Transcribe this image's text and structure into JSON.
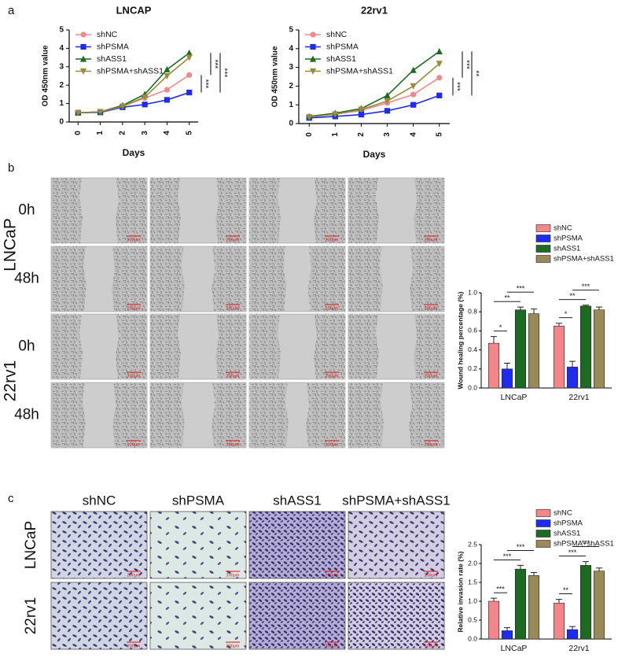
{
  "figure": {
    "panels": [
      "a",
      "b",
      "c"
    ],
    "wound_rows": [
      "0h",
      "48h",
      "0h",
      "48h"
    ],
    "wound_groups": [
      "LNCaP",
      "22rv1"
    ],
    "invasion_columns": [
      "shNC",
      "shPSMA",
      "shASS1",
      "shPSMA+shASS1"
    ],
    "invasion_rows": [
      "LNCaP",
      "22rv1"
    ],
    "scale_bar": "200μm"
  },
  "chart_data": [
    {
      "type": "line",
      "title": "LNCAP",
      "x_label": "Days",
      "y_label": "OD 450nm value",
      "x": [
        0,
        1,
        2,
        3,
        4,
        5
      ],
      "xlim": [
        -0.4,
        5.4
      ],
      "xticks": [
        0,
        1,
        2,
        3,
        4,
        5
      ],
      "ylim": [
        0,
        5
      ],
      "yticks": [
        0,
        1,
        2,
        3,
        4,
        5
      ],
      "series": [
        {
          "name": "shNC",
          "color": "#f08a8a",
          "marker": "circle",
          "values": [
            0.5,
            0.55,
            0.85,
            1.3,
            1.75,
            2.55
          ]
        },
        {
          "name": "shPSMA",
          "color": "#1f2cf0",
          "marker": "square",
          "values": [
            0.5,
            0.52,
            0.8,
            0.95,
            1.2,
            1.6
          ]
        },
        {
          "name": "shASS1",
          "color": "#1d6a22",
          "marker": "triangle",
          "values": [
            0.5,
            0.55,
            0.9,
            1.5,
            2.85,
            3.75
          ]
        },
        {
          "name": "shPSMA+shASS1",
          "color": "#9a8a3e",
          "marker": "triangle-down",
          "values": [
            0.5,
            0.55,
            0.85,
            1.35,
            2.5,
            3.5
          ]
        }
      ],
      "significance": [
        "***",
        "***",
        "***"
      ]
    },
    {
      "type": "line",
      "title": "22rv1",
      "x_label": "Days",
      "y_label": "OD 450nm value",
      "x": [
        0,
        1,
        2,
        3,
        4,
        5
      ],
      "xlim": [
        -0.4,
        5.4
      ],
      "xticks": [
        0,
        1,
        2,
        3,
        4,
        5
      ],
      "ylim": [
        0,
        5
      ],
      "yticks": [
        0,
        1,
        2,
        3,
        4,
        5
      ],
      "series": [
        {
          "name": "shNC",
          "color": "#f08a8a",
          "marker": "circle",
          "values": [
            0.35,
            0.5,
            0.7,
            1.1,
            1.55,
            2.45
          ]
        },
        {
          "name": "shPSMA",
          "color": "#1f2cf0",
          "marker": "square",
          "values": [
            0.3,
            0.38,
            0.48,
            0.68,
            1.0,
            1.5
          ]
        },
        {
          "name": "shASS1",
          "color": "#1d6a22",
          "marker": "triangle",
          "values": [
            0.38,
            0.55,
            0.8,
            1.5,
            2.85,
            3.85
          ]
        },
        {
          "name": "shPSMA+shASS1",
          "color": "#9a8a3e",
          "marker": "triangle-down",
          "values": [
            0.35,
            0.5,
            0.75,
            1.2,
            2.0,
            3.2
          ]
        }
      ],
      "significance": [
        "***",
        "***",
        "**"
      ]
    },
    {
      "type": "bar",
      "y_label": "Wound healing percentage (%)",
      "categories": [
        "LNCaP",
        "22rv1"
      ],
      "ylim": [
        0,
        1
      ],
      "yticks": [
        {
          "value": 0,
          "label": "0.0"
        },
        0.2,
        0.4,
        0.6,
        0.8,
        {
          "value": 1,
          "label": "1.0"
        }
      ],
      "series": [
        {
          "name": "shNC",
          "color": "#f4868a",
          "values": [
            0.47,
            0.65
          ],
          "errors": [
            0.07,
            0.03
          ]
        },
        {
          "name": "shPSMA",
          "color": "#1f2cf0",
          "values": [
            0.2,
            0.22
          ],
          "errors": [
            0.06,
            0.06
          ]
        },
        {
          "name": "shASS1",
          "color": "#1d6a22",
          "values": [
            0.82,
            0.86
          ],
          "errors": [
            0.03,
            0.01
          ]
        },
        {
          "name": "shPSMA+shASS1",
          "color": "#9a8a5a",
          "values": [
            0.78,
            0.82
          ],
          "errors": [
            0.05,
            0.03
          ]
        }
      ],
      "significance": [
        [
          "*",
          "**",
          "***"
        ],
        [
          "*",
          "**",
          "***"
        ]
      ]
    },
    {
      "type": "bar",
      "y_label": "Relative invasion rate (%)",
      "categories": [
        "LNCaP",
        "22rv1"
      ],
      "ylim": [
        0,
        2.5
      ],
      "yticks": [
        {
          "value": 0,
          "label": "0.0"
        },
        0.5,
        {
          "value": 1,
          "label": "1.0"
        },
        1.5,
        {
          "value": 2,
          "label": "2.0"
        },
        2.5
      ],
      "series": [
        {
          "name": "shNC",
          "color": "#f4868a",
          "values": [
            1.0,
            0.95
          ],
          "errors": [
            0.08,
            0.1
          ]
        },
        {
          "name": "shPSMA",
          "color": "#1f2cf0",
          "values": [
            0.22,
            0.25
          ],
          "errors": [
            0.08,
            0.08
          ]
        },
        {
          "name": "shASS1",
          "color": "#1d6a22",
          "values": [
            1.85,
            1.95
          ],
          "errors": [
            0.1,
            0.1
          ]
        },
        {
          "name": "shPSMA+shASS1",
          "color": "#9a8a5a",
          "values": [
            1.68,
            1.8
          ],
          "errors": [
            0.08,
            0.08
          ]
        }
      ],
      "significance": [
        [
          "***",
          "***",
          "***"
        ],
        [
          "**",
          "***",
          "***"
        ]
      ]
    }
  ]
}
